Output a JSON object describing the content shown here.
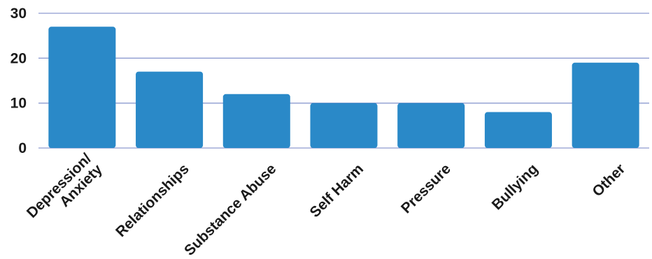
{
  "chart_data": {
    "type": "bar",
    "title": "",
    "xlabel": "",
    "ylabel": "",
    "categories": [
      [
        "Depression/",
        "Anxiety"
      ],
      [
        "Relationships"
      ],
      [
        "Substance Abuse"
      ],
      [
        "Self Harm"
      ],
      [
        "Pressure"
      ],
      [
        "Bullying"
      ],
      [
        "Other"
      ]
    ],
    "values": [
      27,
      17,
      12,
      10,
      10,
      8,
      19
    ],
    "ylim": [
      0,
      30
    ],
    "yticks": [
      "0",
      "10",
      "20",
      "30"
    ],
    "grid": true,
    "bar_color": "#2a89c8",
    "grid_color": "#8e9bd0"
  }
}
